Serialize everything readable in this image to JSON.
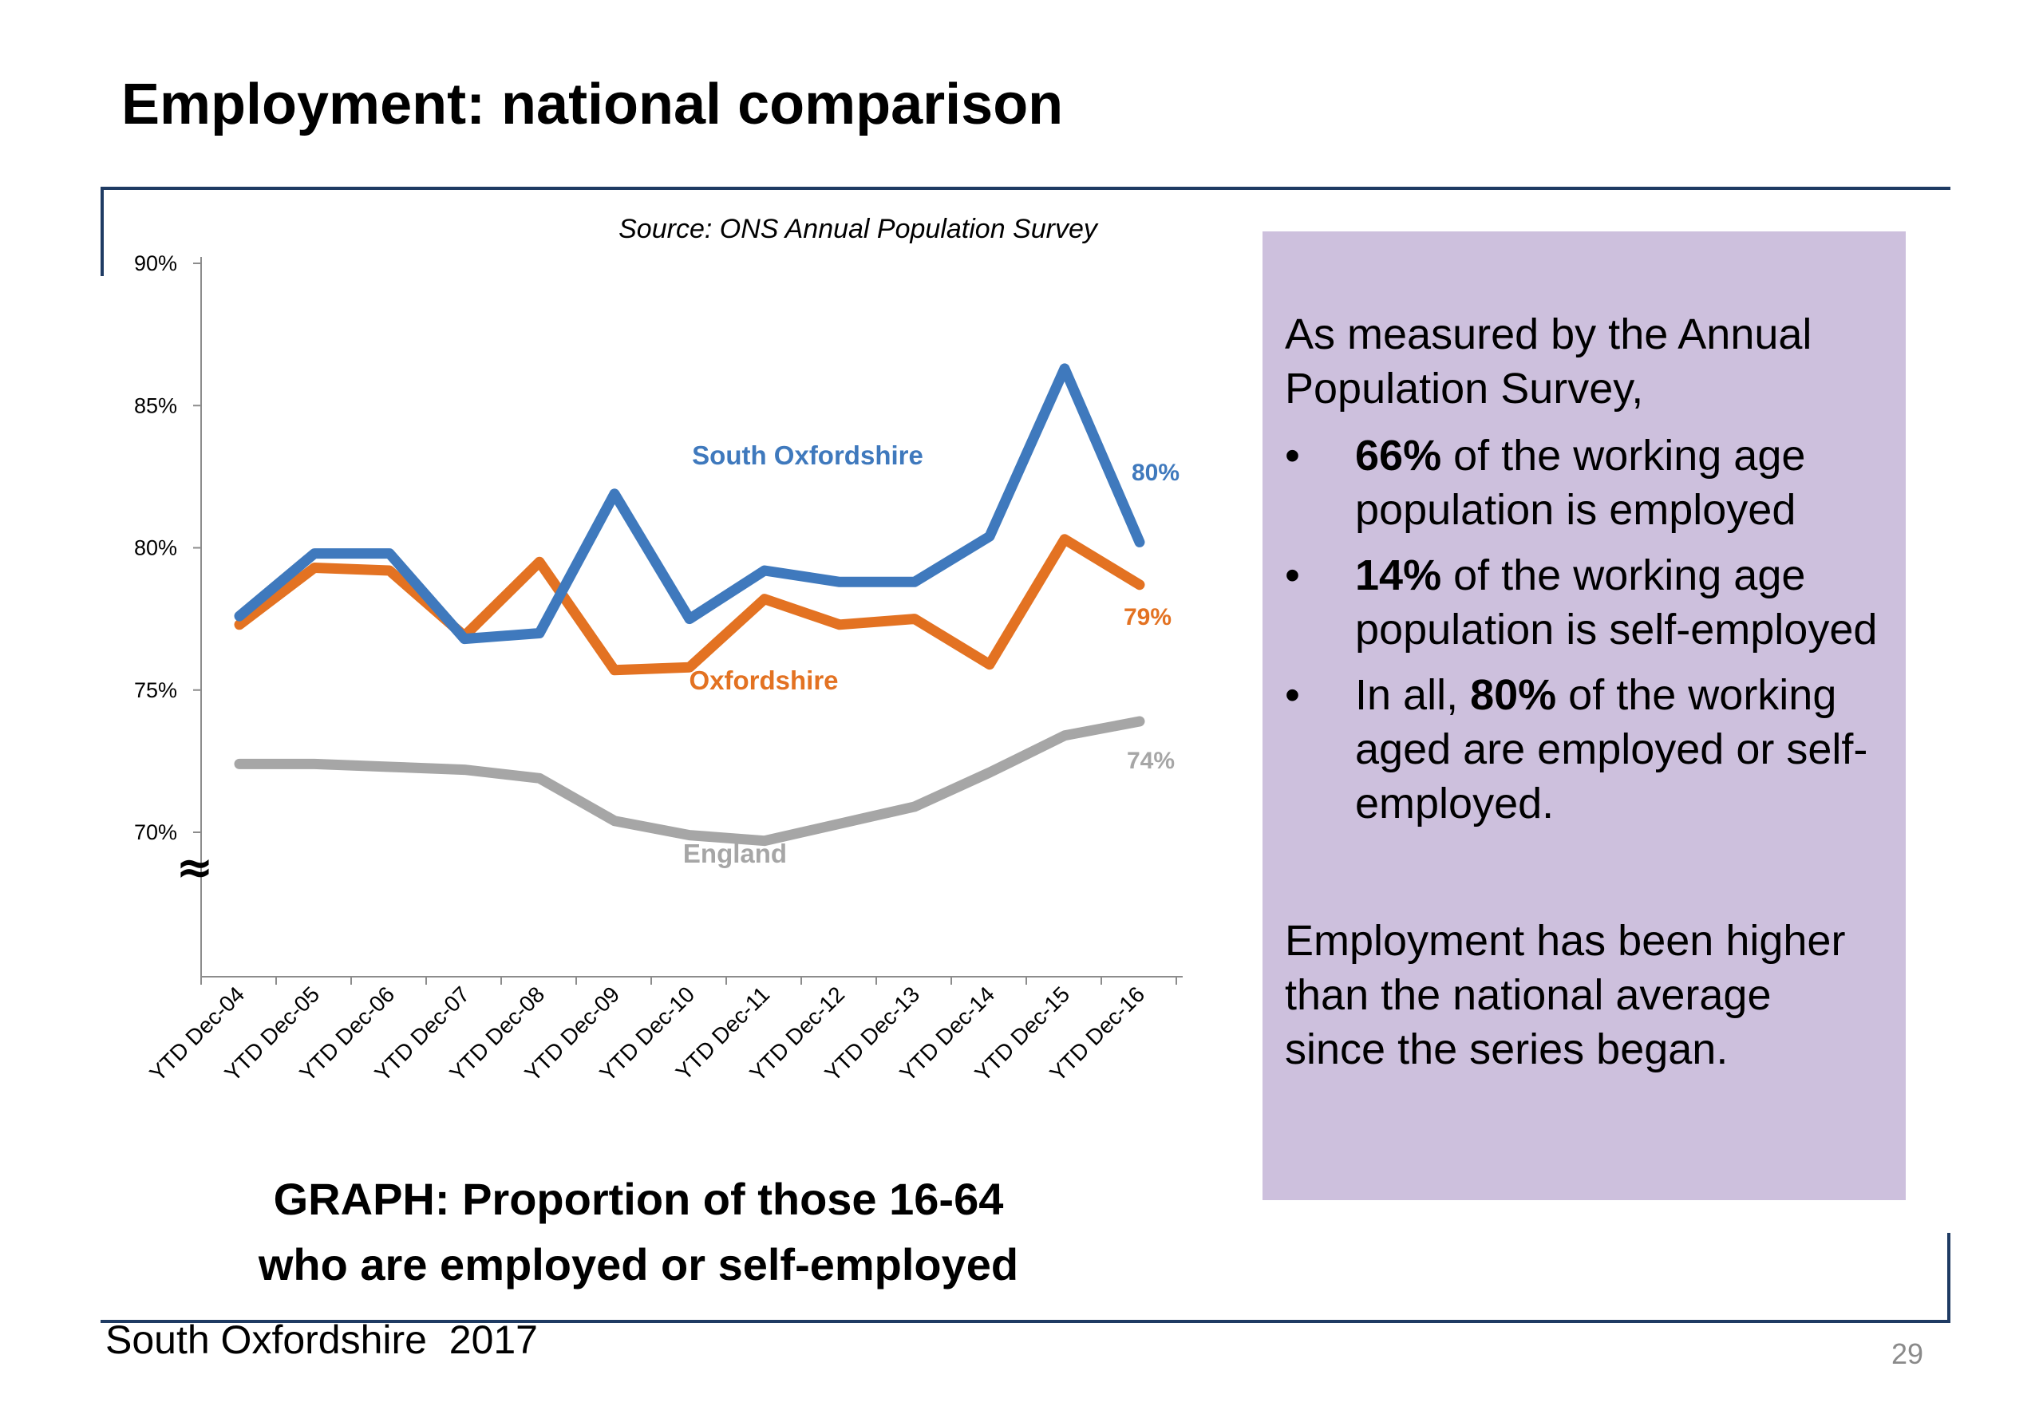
{
  "slide": {
    "title": "Employment: national comparison",
    "footer": "South Oxfordshire  2017",
    "page_number": "29"
  },
  "chart_caption": {
    "line1": "GRAPH: Proportion of those 16-64",
    "line2": "who are employed or self-employed"
  },
  "side_panel": {
    "intro": "As measured by the Annual Population Survey,",
    "bullets": [
      {
        "bold": "66%",
        "text": " of the working age population is employed"
      },
      {
        "bold": "14%",
        "text": " of the working age population is self-employed"
      },
      {
        "pre": "In all, ",
        "bold": "80%",
        "text": " of the working aged are employed or self-employed."
      }
    ],
    "closing": "Employment has been higher than the national average since the series began.",
    "bullet_char": "•"
  },
  "chart_data": {
    "type": "line",
    "source": "Source: ONS Annual Population Survey",
    "categories": [
      "YTD Dec-04",
      "YTD Dec-05",
      "YTD Dec-06",
      "YTD Dec-07",
      "YTD Dec-08",
      "YTD Dec-09",
      "YTD Dec-10",
      "YTD Dec-11",
      "YTD Dec-12",
      "YTD Dec-13",
      "YTD Dec-14",
      "YTD Dec-15",
      "YTD Dec-16"
    ],
    "yticks": [
      "90%",
      "85%",
      "80%",
      "75%",
      "70%"
    ],
    "ylim": [
      65,
      90
    ],
    "axis_break_symbol": "≈",
    "grid": false,
    "series": [
      {
        "name": "South Oxfordshire",
        "end_label": "80%",
        "color": "#3f79bd",
        "values": [
          77.6,
          79.8,
          79.8,
          76.8,
          77.0,
          81.9,
          77.5,
          79.2,
          78.8,
          78.8,
          80.4,
          86.3,
          80.2
        ]
      },
      {
        "name": "Oxfordshire",
        "end_label": "79%",
        "color": "#e37222",
        "values": [
          77.3,
          79.3,
          79.2,
          76.9,
          79.5,
          75.7,
          75.8,
          78.2,
          77.3,
          77.5,
          75.9,
          80.3,
          78.7
        ]
      },
      {
        "name": "England",
        "end_label": "74%",
        "color": "#a6a6a6",
        "values": [
          72.4,
          72.4,
          72.3,
          72.2,
          71.9,
          70.4,
          69.9,
          69.7,
          70.3,
          70.9,
          72.1,
          73.4,
          73.9
        ]
      }
    ]
  }
}
